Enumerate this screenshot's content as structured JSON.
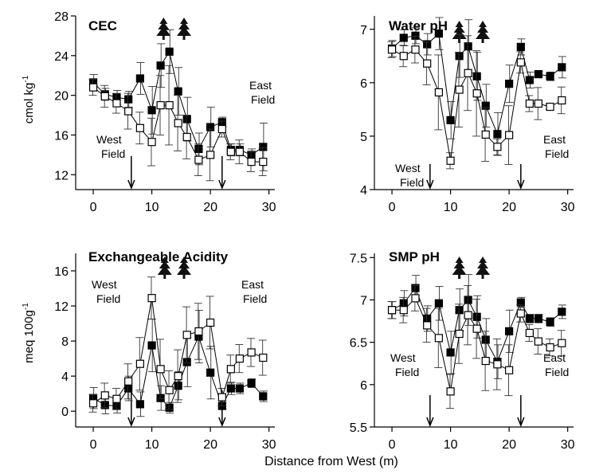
{
  "xlabel_shared": "Distance from West (m)",
  "chart_data": [
    {
      "type": "line",
      "title": "CEC",
      "ylabel": "cmol kg",
      "ylabel_sup": "-1",
      "xlim": [
        -3,
        31
      ],
      "ylim": [
        10.5,
        28
      ],
      "xticks": [
        0,
        10,
        20,
        30
      ],
      "yticks": [
        12,
        16,
        20,
        24,
        28
      ],
      "field_labels": {
        "west": [
          "West",
          "Field"
        ],
        "east": [
          "East",
          "Field"
        ]
      },
      "boundaries": [
        6.5,
        22
      ],
      "tree_positions": [
        12,
        15.5
      ],
      "series": [
        {
          "marker": "filled-square",
          "x": [
            0,
            2,
            4,
            6,
            8,
            10,
            11.5,
            13,
            14.5,
            16,
            18,
            20,
            22,
            23.5,
            25,
            27,
            29
          ],
          "y": [
            21.3,
            20.1,
            19.8,
            19.6,
            21.7,
            18.5,
            23.0,
            24.4,
            20.4,
            17.6,
            14.6,
            16.8,
            17.3,
            14.5,
            14.5,
            14.0,
            14.8
          ],
          "err": [
            0.8,
            0.6,
            0.7,
            0.8,
            1.6,
            2.4,
            2.2,
            2.2,
            2.4,
            2.2,
            1.6,
            2.0,
            0.5,
            0.6,
            0.6,
            0.6,
            2.4
          ]
        },
        {
          "marker": "open-square",
          "x": [
            0,
            2,
            4,
            6,
            8,
            10,
            11.5,
            13,
            14.5,
            16,
            18,
            20,
            22,
            23.5,
            25,
            27,
            29
          ],
          "y": [
            20.8,
            19.9,
            19.2,
            18.4,
            16.7,
            15.3,
            19.0,
            19.0,
            17.2,
            15.8,
            13.5,
            14.0,
            16.6,
            14.3,
            14.3,
            13.3,
            13.3
          ],
          "err": [
            0.8,
            1.1,
            1.0,
            1.8,
            1.6,
            2.4,
            3.0,
            4.0,
            2.8,
            2.2,
            1.6,
            2.6,
            0.8,
            0.8,
            1.2,
            1.0,
            1.4
          ]
        }
      ]
    },
    {
      "type": "line",
      "title": "Water pH",
      "ylabel": "",
      "xlim": [
        -3,
        31
      ],
      "ylim": [
        4,
        7.25
      ],
      "xticks": [
        0,
        10,
        20,
        30
      ],
      "yticks": [
        4,
        5,
        6,
        7
      ],
      "field_labels": {
        "west": [
          "West",
          "Field"
        ],
        "east": [
          "East",
          "Field"
        ]
      },
      "boundaries": [
        6.5,
        22
      ],
      "tree_positions": [
        11.5,
        15.5
      ],
      "series": [
        {
          "marker": "filled-square",
          "x": [
            0,
            2,
            4,
            6,
            8,
            10,
            11.5,
            13,
            14.5,
            16,
            18,
            20,
            22,
            23.5,
            25,
            27,
            29
          ],
          "y": [
            6.64,
            6.84,
            6.88,
            6.72,
            6.92,
            5.3,
            6.5,
            6.68,
            6.12,
            5.57,
            5.04,
            5.98,
            6.67,
            6.05,
            6.16,
            6.12,
            6.29
          ],
          "err": [
            0.15,
            0.15,
            0.15,
            0.2,
            0.3,
            0.35,
            0.4,
            0.5,
            0.45,
            0.4,
            0.4,
            0.35,
            0.15,
            0.15,
            0.05,
            0.08,
            0.2
          ]
        },
        {
          "marker": "open-square",
          "x": [
            0,
            2,
            4,
            6,
            8,
            10,
            11.5,
            13,
            14.5,
            16,
            18,
            20,
            22,
            23.5,
            25,
            27,
            29
          ],
          "y": [
            6.62,
            6.5,
            6.62,
            6.36,
            5.82,
            4.54,
            5.87,
            6.18,
            5.8,
            5.03,
            4.8,
            5.02,
            6.38,
            5.61,
            5.61,
            5.55,
            5.67
          ],
          "err": [
            0.15,
            0.2,
            0.25,
            0.4,
            0.7,
            0.15,
            0.7,
            0.7,
            0.8,
            0.5,
            0.15,
            0.55,
            0.2,
            0.15,
            0.3,
            0.05,
            0.25
          ]
        }
      ]
    },
    {
      "type": "line",
      "title": "Exchangeable Acidity",
      "ylabel": "meq 100g",
      "ylabel_sup": "-1",
      "xlim": [
        -3,
        31
      ],
      "ylim": [
        -1.8,
        18
      ],
      "xticks": [
        0,
        10,
        20,
        30
      ],
      "yticks": [
        0,
        4,
        8,
        12,
        16
      ],
      "field_labels": {
        "west": [
          "West",
          "Field"
        ],
        "east": [
          "East",
          "Field"
        ]
      },
      "boundaries": [
        6.5,
        22
      ],
      "tree_positions": [
        12.2,
        15.5
      ],
      "series": [
        {
          "marker": "filled-square",
          "x": [
            0,
            2,
            4,
            6,
            8,
            10,
            11.5,
            13,
            14.5,
            16,
            18,
            20,
            22,
            23.5,
            25,
            27,
            29
          ],
          "y": [
            1.5,
            0.7,
            0.6,
            2.6,
            0.8,
            7.5,
            1.5,
            0.4,
            2.9,
            5.6,
            8.5,
            4.4,
            0.6,
            2.6,
            2.6,
            3.2,
            1.7
          ],
          "err": [
            1.2,
            1.0,
            0.8,
            1.4,
            1.4,
            3.0,
            1.4,
            0.6,
            1.6,
            2.8,
            3.0,
            3.0,
            0.4,
            0.7,
            0.6,
            0.5,
            0.6
          ]
        },
        {
          "marker": "open-square",
          "x": [
            0,
            2,
            4,
            6,
            8,
            10,
            11.5,
            13,
            14.5,
            16,
            18,
            20,
            22,
            23.5,
            25,
            27,
            29
          ],
          "y": [
            0.9,
            1.8,
            1.4,
            3.4,
            5.4,
            12.9,
            4.8,
            2.4,
            4.0,
            8.7,
            9.1,
            10.1,
            1.6,
            4.8,
            6.0,
            6.7,
            6.1
          ],
          "err": [
            1.0,
            1.4,
            1.2,
            2.0,
            3.0,
            2.4,
            3.4,
            2.2,
            3.0,
            3.2,
            3.2,
            3.0,
            1.0,
            1.6,
            1.6,
            1.6,
            2.0
          ]
        }
      ]
    },
    {
      "type": "line",
      "title": "SMP pH",
      "ylabel": "",
      "xlim": [
        -3,
        31
      ],
      "ylim": [
        5.5,
        7.55
      ],
      "xticks": [
        0,
        10,
        20,
        30
      ],
      "yticks": [
        5.5,
        6,
        6.5,
        7,
        7.5
      ],
      "field_labels": {
        "west": [
          "West",
          "Field"
        ],
        "east": [
          "East",
          "Field"
        ]
      },
      "boundaries": [
        6.5,
        22
      ],
      "tree_positions": [
        11.5,
        15.5
      ],
      "series": [
        {
          "marker": "filled-square",
          "x": [
            0,
            2,
            4,
            6,
            8,
            10,
            11.5,
            13,
            14.5,
            16,
            18,
            20,
            22,
            23.5,
            25,
            27,
            29
          ],
          "y": [
            6.88,
            6.96,
            7.14,
            6.78,
            6.96,
            6.38,
            6.88,
            7.0,
            6.8,
            6.53,
            6.27,
            6.63,
            6.97,
            6.78,
            6.78,
            6.74,
            6.86
          ],
          "err": [
            0.1,
            0.15,
            0.15,
            0.15,
            0.2,
            0.25,
            0.25,
            0.3,
            0.25,
            0.25,
            0.2,
            0.25,
            0.06,
            0.05,
            0.05,
            0.05,
            0.08
          ]
        },
        {
          "marker": "open-square",
          "x": [
            0,
            2,
            4,
            6,
            8,
            10,
            11.5,
            13,
            14.5,
            16,
            18,
            20,
            22,
            23.5,
            25,
            27,
            29
          ],
          "y": [
            6.88,
            6.88,
            7.02,
            6.7,
            6.55,
            5.92,
            6.6,
            6.82,
            6.66,
            6.28,
            6.24,
            6.17,
            6.84,
            6.61,
            6.51,
            6.44,
            6.49
          ],
          "err": [
            0.1,
            0.15,
            0.15,
            0.2,
            0.35,
            0.2,
            0.35,
            0.35,
            0.35,
            0.35,
            0.3,
            0.3,
            0.1,
            0.1,
            0.15,
            0.1,
            0.15
          ]
        }
      ]
    }
  ]
}
